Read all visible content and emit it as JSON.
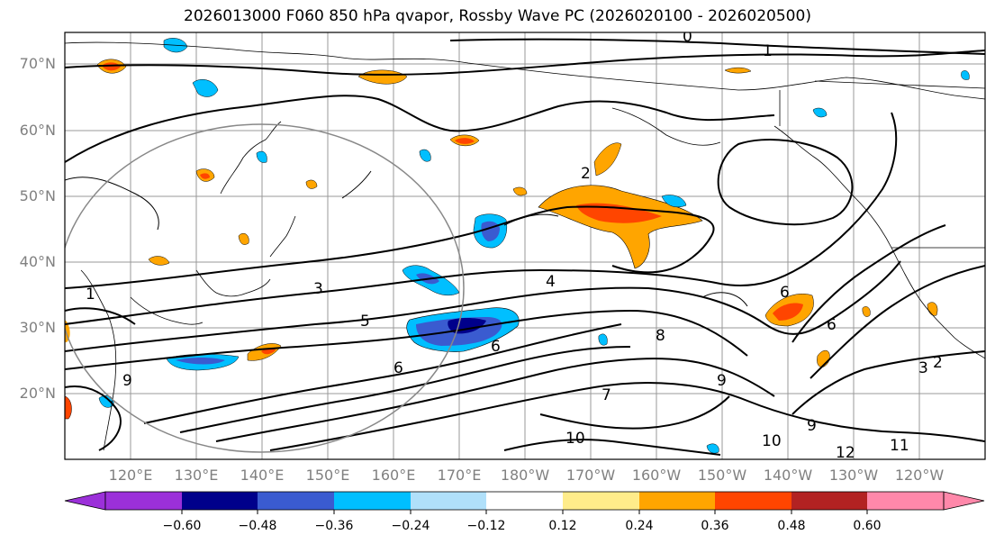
{
  "title": "2026013000 F060 850 hPa qvapor, Rossby Wave PC (2026020100 - 2026020500)",
  "lat_labels": [
    "70°N",
    "60°N",
    "50°N",
    "40°N",
    "30°N",
    "20°N"
  ],
  "lon_labels": [
    "120°E",
    "130°E",
    "140°E",
    "150°E",
    "160°E",
    "170°E",
    "180°W",
    "170°W",
    "160°W",
    "150°W",
    "140°W",
    "130°W",
    "120°W"
  ],
  "contour_labels": [
    "0",
    "1",
    "1",
    "3",
    "4",
    "5",
    "6",
    "6",
    "6",
    "6",
    "8",
    "9",
    "9",
    "9",
    "10",
    "10",
    "11",
    "12",
    "2",
    "3",
    "7",
    "2"
  ],
  "colorbar": {
    "tick_labels": [
      "−0.60",
      "−0.48",
      "−0.36",
      "−0.24",
      "−0.12",
      "0.12",
      "0.24",
      "0.36",
      "0.48",
      "0.60"
    ],
    "colors": [
      "#9b30d9",
      "#00008b",
      "#3a5bd0",
      "#00bfff",
      "#b0e0fa",
      "#ffffff",
      "#ffec8a",
      "#ffa500",
      "#ff4500",
      "#b22222",
      "#ff88aa"
    ]
  }
}
